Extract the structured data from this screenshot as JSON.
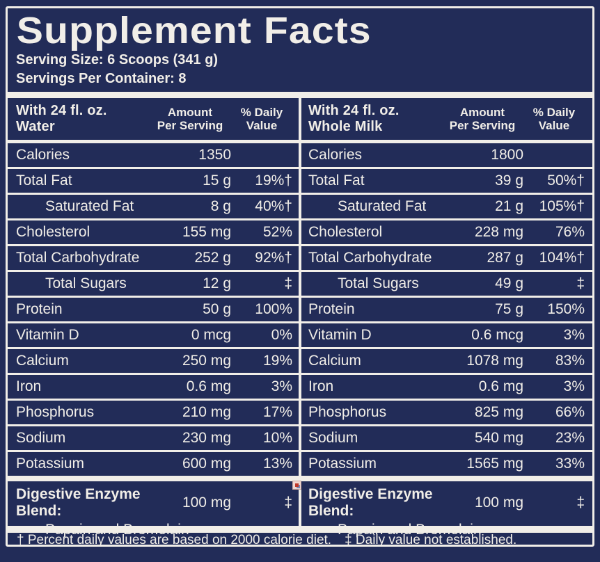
{
  "title": "Supplement Facts",
  "serving_size": "Serving Size: 6 Scoops (341 g)",
  "servings_per_container": "Servings Per Container: 8",
  "table": {
    "amount_header": [
      "Amount",
      "Per Serving"
    ],
    "dv_header": [
      "% Daily",
      "Value"
    ],
    "columns": [
      {
        "title": "With 24 fl. oz. Water",
        "rows": [
          {
            "name": "Calories",
            "amount": "1350",
            "dv": "",
            "indent": false
          },
          {
            "name": "Total Fat",
            "amount": "15 g",
            "dv": "19%†",
            "indent": false
          },
          {
            "name": "Saturated Fat",
            "amount": "8 g",
            "dv": "40%†",
            "indent": true
          },
          {
            "name": "Cholesterol",
            "amount": "155 mg",
            "dv": "52%",
            "indent": false
          },
          {
            "name": "Total Carbohydrate",
            "amount": "252 g",
            "dv": "92%†",
            "indent": false
          },
          {
            "name": "Total Sugars",
            "amount": "12 g",
            "dv": "‡",
            "indent": true
          },
          {
            "name": "Protein",
            "amount": "50 g",
            "dv": "100%",
            "indent": false
          },
          {
            "name": "Vitamin D",
            "amount": "0 mcg",
            "dv": "0%",
            "indent": false
          },
          {
            "name": "Calcium",
            "amount": "250 mg",
            "dv": "19%",
            "indent": false
          },
          {
            "name": "Iron",
            "amount": "0.6 mg",
            "dv": "3%",
            "indent": false
          },
          {
            "name": "Phosphorus",
            "amount": "210 mg",
            "dv": "17%",
            "indent": false
          },
          {
            "name": "Sodium",
            "amount": "230 mg",
            "dv": "10%",
            "indent": false
          },
          {
            "name": "Potassium",
            "amount": "600 mg",
            "dv": "13%",
            "indent": false
          }
        ],
        "blend": {
          "name": "Digestive Enzyme Blend:",
          "sub": "Papain and Bromelain",
          "amount": "100 mg",
          "dv": "‡"
        }
      },
      {
        "title": "With 24 fl. oz. Whole Milk",
        "rows": [
          {
            "name": "Calories",
            "amount": "1800",
            "dv": "",
            "indent": false
          },
          {
            "name": "Total Fat",
            "amount": "39 g",
            "dv": "50%†",
            "indent": false
          },
          {
            "name": "Saturated Fat",
            "amount": "21 g",
            "dv": "105%†",
            "indent": true
          },
          {
            "name": "Cholesterol",
            "amount": "228 mg",
            "dv": "76%",
            "indent": false
          },
          {
            "name": "Total Carbohydrate",
            "amount": "287 g",
            "dv": "104%†",
            "indent": false
          },
          {
            "name": "Total Sugars",
            "amount": "49 g",
            "dv": "‡",
            "indent": true
          },
          {
            "name": "Protein",
            "amount": "75 g",
            "dv": "150%",
            "indent": false
          },
          {
            "name": "Vitamin D",
            "amount": "0.6 mcg",
            "dv": "3%",
            "indent": false
          },
          {
            "name": "Calcium",
            "amount": "1078 mg",
            "dv": "83%",
            "indent": false
          },
          {
            "name": "Iron",
            "amount": "0.6 mg",
            "dv": "3%",
            "indent": false
          },
          {
            "name": "Phosphorus",
            "amount": "825 mg",
            "dv": "66%",
            "indent": false
          },
          {
            "name": "Sodium",
            "amount": "540 mg",
            "dv": "23%",
            "indent": false
          },
          {
            "name": "Potassium",
            "amount": "1565 mg",
            "dv": "33%",
            "indent": false
          }
        ],
        "blend": {
          "name": "Digestive Enzyme Blend:",
          "sub": "Papain and Bromelain",
          "amount": "100 mg",
          "dv": "‡"
        }
      }
    ]
  },
  "footnotes": {
    "dagger": "† Percent daily values are based on 2000 calorie diet.",
    "double_dagger": "‡ Daily value not established."
  },
  "colors": {
    "navy": "#222c58",
    "off_white": "#f1eee8"
  },
  "icons": {
    "artifact": "broken-image-icon"
  }
}
